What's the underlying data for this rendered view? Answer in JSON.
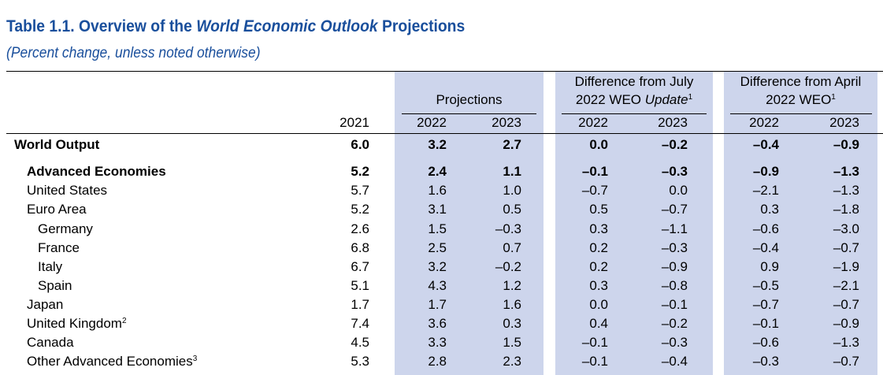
{
  "title": {
    "prefix": "Table 1.1. Overview of the ",
    "italic": "World Economic Outlook",
    "suffix": " Projections"
  },
  "subtitle": "(Percent change, unless noted otherwise)",
  "headers": {
    "projections": "Projections",
    "diff_july_line1": "Difference from July",
    "diff_july_line2_prefix": "2022 WEO ",
    "diff_july_line2_italic": "Update",
    "diff_july_sup": "1",
    "diff_april_line1": "Difference from April",
    "diff_april_line2": "2022 WEO",
    "diff_april_sup": "1",
    "years": [
      "2021",
      "2022",
      "2023",
      "2022",
      "2023",
      "2022",
      "2023"
    ]
  },
  "rows": [
    {
      "label": "World Output",
      "sup": "",
      "indent": 0,
      "bold": true,
      "values": [
        "6.0",
        "3.2",
        "2.7",
        "0.0",
        "–0.2",
        "–0.4",
        "–0.9"
      ]
    },
    {
      "label": "Advanced Economies",
      "sup": "",
      "indent": 1,
      "bold": true,
      "values": [
        "5.2",
        "2.4",
        "1.1",
        "–0.1",
        "–0.3",
        "–0.9",
        "–1.3"
      ]
    },
    {
      "label": "United States",
      "sup": "",
      "indent": 1,
      "bold": false,
      "values": [
        "5.7",
        "1.6",
        "1.0",
        "–0.7",
        "0.0",
        "–2.1",
        "–1.3"
      ]
    },
    {
      "label": "Euro Area",
      "sup": "",
      "indent": 1,
      "bold": false,
      "values": [
        "5.2",
        "3.1",
        "0.5",
        "0.5",
        "–0.7",
        "0.3",
        "–1.8"
      ]
    },
    {
      "label": "Germany",
      "sup": "",
      "indent": 2,
      "bold": false,
      "values": [
        "2.6",
        "1.5",
        "–0.3",
        "0.3",
        "–1.1",
        "–0.6",
        "–3.0"
      ]
    },
    {
      "label": "France",
      "sup": "",
      "indent": 2,
      "bold": false,
      "values": [
        "6.8",
        "2.5",
        "0.7",
        "0.2",
        "–0.3",
        "–0.4",
        "–0.7"
      ]
    },
    {
      "label": "Italy",
      "sup": "",
      "indent": 2,
      "bold": false,
      "values": [
        "6.7",
        "3.2",
        "–0.2",
        "0.2",
        "–0.9",
        "0.9",
        "–1.9"
      ]
    },
    {
      "label": "Spain",
      "sup": "",
      "indent": 2,
      "bold": false,
      "values": [
        "5.1",
        "4.3",
        "1.2",
        "0.3",
        "–0.8",
        "–0.5",
        "–2.1"
      ]
    },
    {
      "label": "Japan",
      "sup": "",
      "indent": 1,
      "bold": false,
      "values": [
        "1.7",
        "1.7",
        "1.6",
        "0.0",
        "–0.1",
        "–0.7",
        "–0.7"
      ]
    },
    {
      "label": "United Kingdom",
      "sup": "2",
      "indent": 1,
      "bold": false,
      "values": [
        "7.4",
        "3.6",
        "0.3",
        "0.4",
        "–0.2",
        "–0.1",
        "–0.9"
      ]
    },
    {
      "label": "Canada",
      "sup": "",
      "indent": 1,
      "bold": false,
      "values": [
        "4.5",
        "3.3",
        "1.5",
        "–0.1",
        "–0.3",
        "–0.6",
        "–1.3"
      ]
    },
    {
      "label": "Other Advanced Economies",
      "sup": "3",
      "indent": 1,
      "bold": false,
      "values": [
        "5.3",
        "2.8",
        "2.3",
        "–0.1",
        "–0.4",
        "–0.3",
        "–0.7"
      ]
    }
  ],
  "colors": {
    "title": "#1a4f9c",
    "band": "#cdd5ec"
  }
}
